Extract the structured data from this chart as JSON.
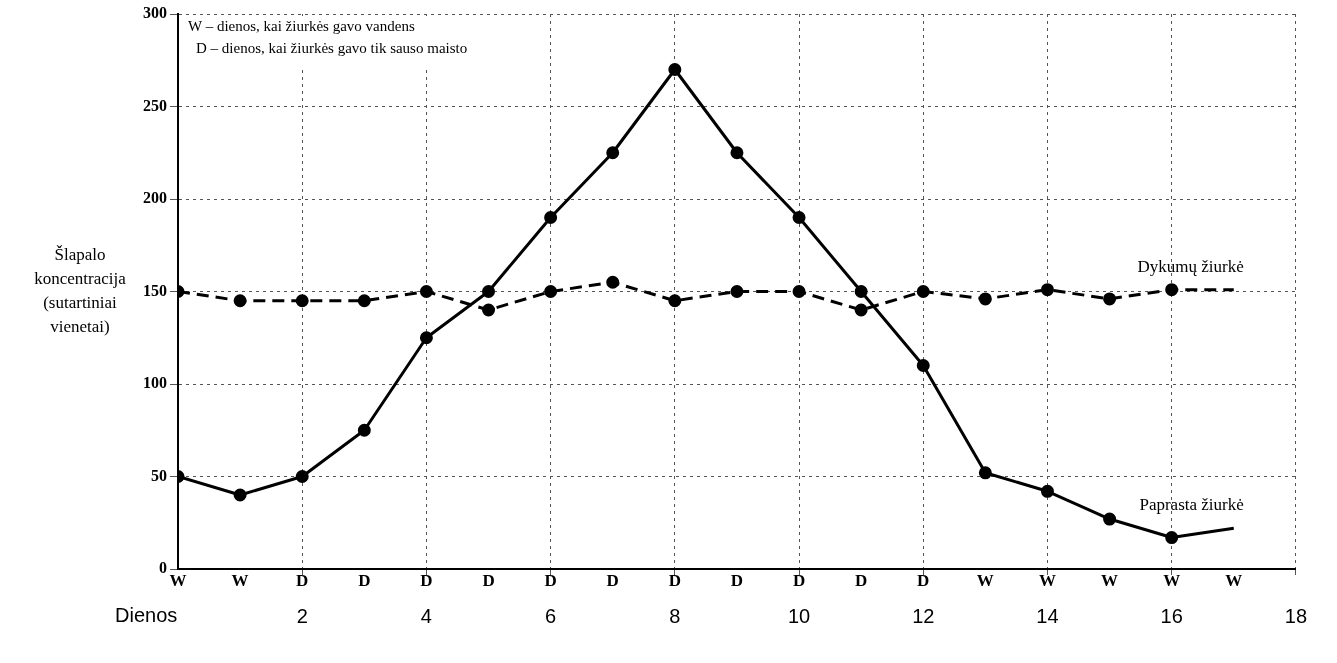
{
  "chart_data": {
    "type": "line",
    "xlabel": "Dienos",
    "ylabel": "Šlapalo koncentracija (sutartiniai vienetai)",
    "xlim": [
      0,
      18
    ],
    "xticks": [
      2,
      4,
      6,
      8,
      10,
      12,
      14,
      16,
      18
    ],
    "ylim": [
      0,
      300
    ],
    "yticks": [
      0,
      50,
      100,
      150,
      200,
      250,
      300
    ],
    "grid": true,
    "marker": "circle",
    "legend": false,
    "x": [
      0,
      1,
      2,
      3,
      4,
      5,
      6,
      7,
      8,
      9,
      10,
      11,
      12,
      13,
      14,
      15,
      16,
      17
    ],
    "series": [
      {
        "name": "Paprasta žiurkė",
        "color": "#000000",
        "line_style": "solid",
        "values": [
          50,
          40,
          50,
          75,
          125,
          150,
          190,
          225,
          270,
          225,
          190,
          150,
          110,
          52,
          42,
          27,
          17,
          22
        ]
      },
      {
        "name": "Dykumų žiurkė",
        "color": "#000000",
        "line_style": "dashed",
        "values": [
          150,
          145,
          145,
          145,
          150,
          140,
          150,
          155,
          145,
          150,
          150,
          140,
          150,
          146,
          151,
          146,
          151,
          151
        ]
      }
    ],
    "annotations": [
      "W – dienos, kai žiurkės gavo vandens",
      "D – dienos, kai žiurkės gavo tik sauso maisto",
      "W",
      "W",
      "D",
      "D",
      "D",
      "D",
      "D",
      "D",
      "D",
      "D",
      "D",
      "D",
      "D",
      "W",
      "W",
      "W",
      "W",
      "W"
    ]
  }
}
